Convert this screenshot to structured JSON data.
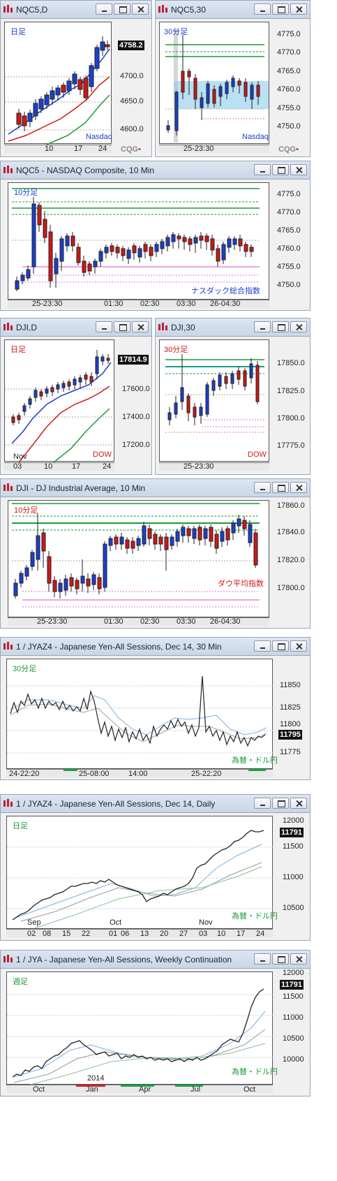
{
  "windows": [
    {
      "title": "NQC5,D",
      "period": "日足",
      "name_label": "Nasdaq",
      "price_box": "4758.2",
      "y_ticks": [
        "4700.0",
        "4650.0",
        "4600.0"
      ],
      "x_ticks": [
        "10",
        "17",
        "24"
      ],
      "logo": "CQG"
    },
    {
      "title": "NQC5,30",
      "period": "30分足",
      "name_label": "Nasdaq",
      "y_ticks": [
        "4775.0",
        "4770.0",
        "4765.0",
        "4760.0",
        "4755.0",
        "4750.0"
      ],
      "x_ticks": [
        "25-23:30"
      ],
      "logo": "CQG"
    },
    {
      "title": "NQC5 - NASDAQ Composite, 10 Min",
      "period": "10分足",
      "name_label": "ナスダック総合指数",
      "y_ticks": [
        "4775.0",
        "4770.0",
        "4765.0",
        "4760.0",
        "4755.0",
        "4750.0"
      ],
      "x_ticks": [
        "25-23:30",
        "01:30",
        "02:30",
        "03:30",
        "26-04:30"
      ]
    },
    {
      "title": "DJI,D",
      "period": "日足",
      "name_label": "DOW",
      "price_box": "17814.9",
      "y_ticks": [
        "17600.0",
        "17400.0",
        "17200.0"
      ],
      "x_ticks": [
        "03",
        "10",
        "17",
        "24"
      ],
      "x_top": "Nov"
    },
    {
      "title": "DJI,30",
      "period": "30分足",
      "name_label": "DOW",
      "y_ticks": [
        "17850.0",
        "17825.0",
        "17800.0",
        "17775.0"
      ],
      "x_ticks": [
        "25-23:30"
      ]
    },
    {
      "title": "DJI - DJ Industrial Average, 10 Min",
      "period": "10分足",
      "name_label": "ダウ平均指数",
      "y_ticks": [
        "17860.0",
        "17840.0",
        "17820.0",
        "17800.0"
      ],
      "x_ticks": [
        "25-23:30",
        "01:30",
        "02:30",
        "03:30",
        "26-04:30"
      ]
    },
    {
      "title": "1 / JYAZ4 - Japanese Yen-All Sessions, Dec 14, 30 Min",
      "period": "30分足",
      "name_label": "為替・ドル円",
      "price_box": "11795",
      "y_ticks": [
        "11850",
        "11825",
        "11800",
        "11775"
      ],
      "x_ticks": [
        "24-22:20",
        "25-08:00",
        "14:00",
        "25-22:20"
      ]
    },
    {
      "title": "1 / JYAZ4 - Japanese Yen-All Sessions, Dec 14, Daily",
      "period": "日足",
      "name_label": "為替・ドル円",
      "price_box": "11791",
      "y_ticks": [
        "12000",
        "11500",
        "11000",
        "10500"
      ],
      "x_ticks": [
        "02",
        "08",
        "15",
        "22",
        "01",
        "06",
        "13",
        "20",
        "27",
        "03",
        "10",
        "17",
        "24"
      ],
      "x_top": [
        "Sep",
        "Oct",
        "Nov"
      ]
    },
    {
      "title": "1 / JYA - Japanese Yen-All Sessions, Weekly Continuation",
      "period": "週足",
      "name_label": "為替・ドル円",
      "price_box": "11791",
      "y_ticks": [
        "12000",
        "11500",
        "11000",
        "10500",
        "10000"
      ],
      "x_ticks": [
        "Oct",
        "Jan",
        "Apr",
        "Jul",
        "Oct"
      ],
      "x_top": [
        "2014"
      ]
    }
  ],
  "colors": {
    "up": "#1a3fd0",
    "down": "#cc1818",
    "green": "#1a9a3a",
    "pink": "#e070d0",
    "blue_period": "#1a3fd0",
    "red_period": "#d01818"
  }
}
